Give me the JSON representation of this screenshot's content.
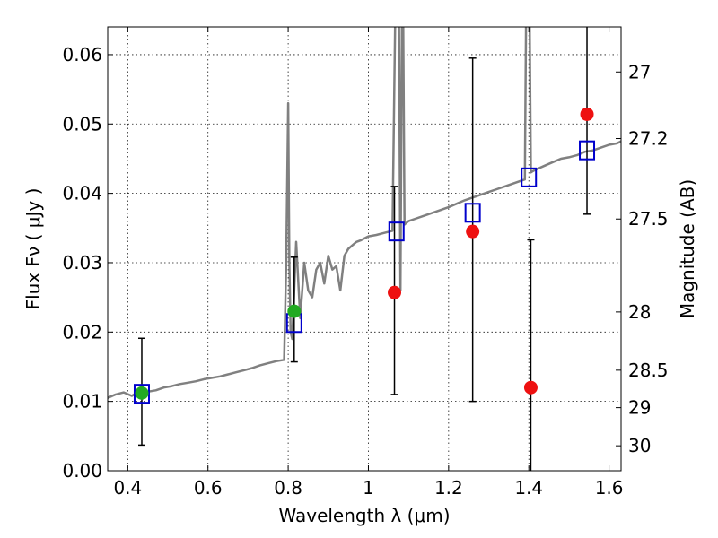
{
  "chart_data": {
    "type": "scatter",
    "xlabel": "Wavelength  λ (μm)",
    "ylabel": "Flux  Fν  ( μJy )",
    "y2label": "Magnitude (AB)",
    "xlim": [
      0.35,
      1.63
    ],
    "ylim": [
      0.0,
      0.064
    ],
    "grid": true,
    "x_ticks": [
      {
        "value": 0.4,
        "label": "0.4"
      },
      {
        "value": 0.6,
        "label": "0.6"
      },
      {
        "value": 0.8,
        "label": "0.8"
      },
      {
        "value": 1.0,
        "label": "1"
      },
      {
        "value": 1.2,
        "label": "1.2"
      },
      {
        "value": 1.4,
        "label": "1.4"
      },
      {
        "value": 1.6,
        "label": "1.6"
      }
    ],
    "y_ticks": [
      {
        "value": 0.0,
        "label": "0.00"
      },
      {
        "value": 0.01,
        "label": "0.01"
      },
      {
        "value": 0.02,
        "label": "0.02"
      },
      {
        "value": 0.03,
        "label": "0.03"
      },
      {
        "value": 0.04,
        "label": "0.04"
      },
      {
        "value": 0.05,
        "label": "0.05"
      },
      {
        "value": 0.06,
        "label": "0.06"
      }
    ],
    "y2_ticks": [
      {
        "label": "27",
        "flux": 0.0575
      },
      {
        "label": "27.2",
        "flux": 0.0479
      },
      {
        "label": "27.5",
        "flux": 0.0363
      },
      {
        "label": "28",
        "flux": 0.0229
      },
      {
        "label": "28.5",
        "flux": 0.0145
      },
      {
        "label": "29",
        "flux": 0.0091
      },
      {
        "label": "30",
        "flux": 0.0036
      }
    ],
    "series": [
      {
        "kind": "spectrum",
        "color": "#808080",
        "x": [
          0.35,
          0.37,
          0.39,
          0.41,
          0.43,
          0.45,
          0.47,
          0.49,
          0.51,
          0.53,
          0.55,
          0.57,
          0.59,
          0.61,
          0.63,
          0.65,
          0.67,
          0.69,
          0.71,
          0.73,
          0.75,
          0.77,
          0.79,
          0.795,
          0.8,
          0.803,
          0.806,
          0.81,
          0.82,
          0.83,
          0.84,
          0.85,
          0.86,
          0.87,
          0.88,
          0.89,
          0.9,
          0.91,
          0.92,
          0.93,
          0.94,
          0.95,
          0.96,
          0.97,
          0.98,
          0.99,
          1.0,
          1.02,
          1.04,
          1.06,
          1.07,
          1.075,
          1.08,
          1.085,
          1.09,
          1.1,
          1.12,
          1.14,
          1.16,
          1.18,
          1.2,
          1.22,
          1.24,
          1.26,
          1.28,
          1.3,
          1.32,
          1.34,
          1.36,
          1.38,
          1.39,
          1.395,
          1.4,
          1.405,
          1.41,
          1.42,
          1.44,
          1.46,
          1.48,
          1.5,
          1.52,
          1.54,
          1.56,
          1.58,
          1.6,
          1.62,
          1.63
        ],
        "y": [
          0.0105,
          0.011,
          0.0113,
          0.0108,
          0.0115,
          0.0114,
          0.0116,
          0.012,
          0.0122,
          0.0125,
          0.0127,
          0.0129,
          0.0132,
          0.0134,
          0.0136,
          0.0139,
          0.0142,
          0.0145,
          0.0148,
          0.0152,
          0.0155,
          0.0158,
          0.016,
          0.03,
          0.053,
          0.03,
          0.02,
          0.019,
          0.033,
          0.022,
          0.03,
          0.026,
          0.025,
          0.029,
          0.03,
          0.027,
          0.031,
          0.029,
          0.0295,
          0.026,
          0.031,
          0.032,
          0.0325,
          0.033,
          0.0332,
          0.0335,
          0.0338,
          0.034,
          0.0343,
          0.0346,
          0.08,
          0.08,
          0.026,
          0.08,
          0.0355,
          0.036,
          0.0364,
          0.0368,
          0.0372,
          0.0376,
          0.038,
          0.0385,
          0.039,
          0.0394,
          0.0398,
          0.0402,
          0.0406,
          0.041,
          0.0414,
          0.0418,
          0.042,
          0.08,
          0.08,
          0.043,
          0.0432,
          0.0435,
          0.044,
          0.0445,
          0.045,
          0.0452,
          0.0455,
          0.046,
          0.0462,
          0.0466,
          0.047,
          0.0472,
          0.0475
        ]
      },
      {
        "kind": "model-photometry",
        "marker": "open-square",
        "color": "#0000cc",
        "x": [
          0.435,
          0.815,
          1.07,
          1.26,
          1.4,
          1.545
        ],
        "y": [
          0.0111,
          0.0213,
          0.0345,
          0.0372,
          0.0423,
          0.0462
        ]
      },
      {
        "kind": "detections",
        "marker": "filled-circle",
        "color": "#22aa22",
        "x": [
          0.435,
          0.815
        ],
        "y": [
          0.0112,
          0.023
        ],
        "yerr_low": [
          0.0037,
          0.0157
        ],
        "yerr_high": [
          0.0191,
          0.0308
        ]
      },
      {
        "kind": "measurements",
        "marker": "filled-circle",
        "color": "#ee1111",
        "x": [
          1.065,
          1.26,
          1.405,
          1.545
        ],
        "y": [
          0.0257,
          0.0345,
          0.012,
          0.0514
        ],
        "yerr_low": [
          0.011,
          0.01,
          0.0,
          0.037
        ],
        "yerr_high": [
          0.041,
          0.0595,
          0.0333,
          0.064
        ]
      }
    ]
  }
}
